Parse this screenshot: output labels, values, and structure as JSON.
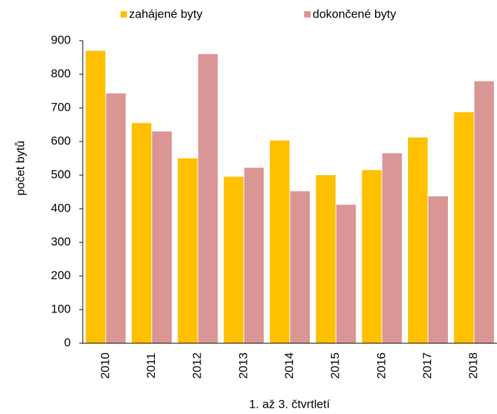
{
  "chart_data": {
    "type": "bar",
    "categories": [
      "2010",
      "2011",
      "2012",
      "2013",
      "2014",
      "2015",
      "2016",
      "2017",
      "2018"
    ],
    "series": [
      {
        "name": "zahájené byty",
        "color": "#ffc000",
        "values": [
          870,
          655,
          550,
          495,
          603,
          500,
          515,
          612,
          687
        ]
      },
      {
        "name": "dokončené byty",
        "color": "#d99694",
        "values": [
          743,
          630,
          860,
          522,
          452,
          412,
          565,
          437,
          779
        ]
      }
    ],
    "ylabel": "počet bytů",
    "xlabel": "1. až 3. čtvrtletí",
    "ylim": [
      0,
      900
    ],
    "yticks": [
      0,
      100,
      200,
      300,
      400,
      500,
      600,
      700,
      800,
      900
    ],
    "grid": false,
    "legend": "top"
  }
}
